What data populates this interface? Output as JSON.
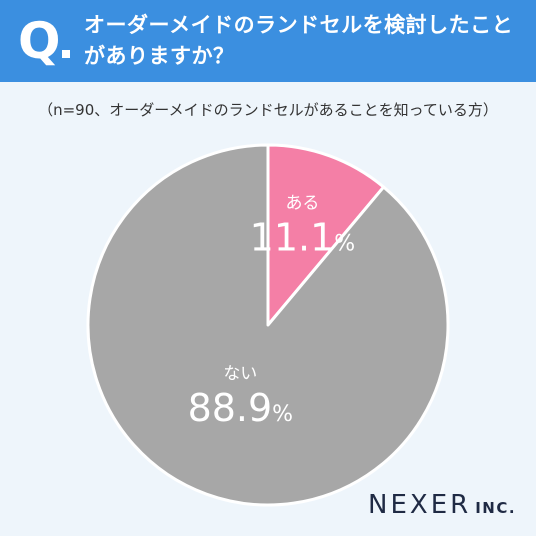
{
  "header": {
    "q_mark": "Q",
    "question_line1": "オーダーメイドのランドセルを検討したこと",
    "question_line2": "がありますか？"
  },
  "note": "（n=90、オーダーメイドのランドセルがあることを知っている方）",
  "chart_data": {
    "type": "pie",
    "title": "",
    "start_angle_deg": 0,
    "direction": "clockwise",
    "slices": [
      {
        "name": "ある",
        "value": 11.1,
        "value_text": "11.1",
        "unit": "%",
        "color": "#f47fa6"
      },
      {
        "name": "ない",
        "value": 88.9,
        "value_text": "88.9",
        "unit": "%",
        "color": "#a7a7a7"
      }
    ]
  },
  "colors": {
    "header_bg": "#3b8fe0",
    "page_bg": "#eef5fb",
    "slice_border": "#ffffff"
  },
  "brand": {
    "name": "NEXER",
    "suffix": "INC."
  }
}
